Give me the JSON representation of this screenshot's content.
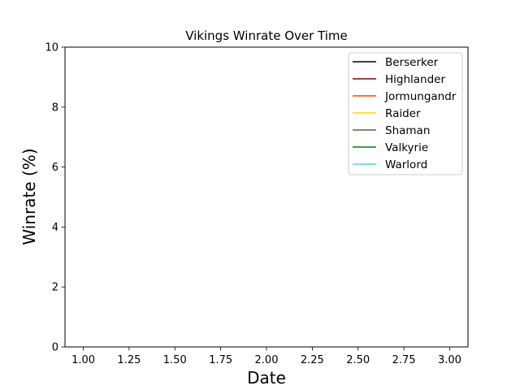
{
  "chart_data": {
    "type": "line",
    "title": "Vikings Winrate Over Time",
    "xlabel": "Date",
    "ylabel": "Winrate (%)",
    "xlim": [
      0.9,
      3.1
    ],
    "ylim": [
      0,
      10
    ],
    "xticks": [
      1.0,
      1.25,
      1.5,
      1.75,
      2.0,
      2.25,
      2.5,
      2.75,
      3.0
    ],
    "xtick_labels": [
      "1.00",
      "1.25",
      "1.50",
      "1.75",
      "2.00",
      "2.25",
      "2.50",
      "2.75",
      "3.00"
    ],
    "yticks": [
      0,
      2,
      4,
      6,
      8,
      10
    ],
    "ytick_labels": [
      "0",
      "2",
      "4",
      "6",
      "8",
      "10"
    ],
    "grid": false,
    "legend_position": "top-right",
    "series": [
      {
        "name": "Berserker",
        "color": "#000000",
        "x": [],
        "y": []
      },
      {
        "name": "Highlander",
        "color": "#8b0000",
        "x": [],
        "y": []
      },
      {
        "name": "Jormungandr",
        "color": "#ff4500",
        "x": [],
        "y": []
      },
      {
        "name": "Raider",
        "color": "#ffd700",
        "x": [],
        "y": []
      },
      {
        "name": "Shaman",
        "color": "#556b2f",
        "x": [],
        "y": []
      },
      {
        "name": "Valkyrie",
        "color": "#008000",
        "x": [],
        "y": []
      },
      {
        "name": "Warlord",
        "color": "#40e0d0",
        "x": [],
        "y": []
      }
    ]
  }
}
